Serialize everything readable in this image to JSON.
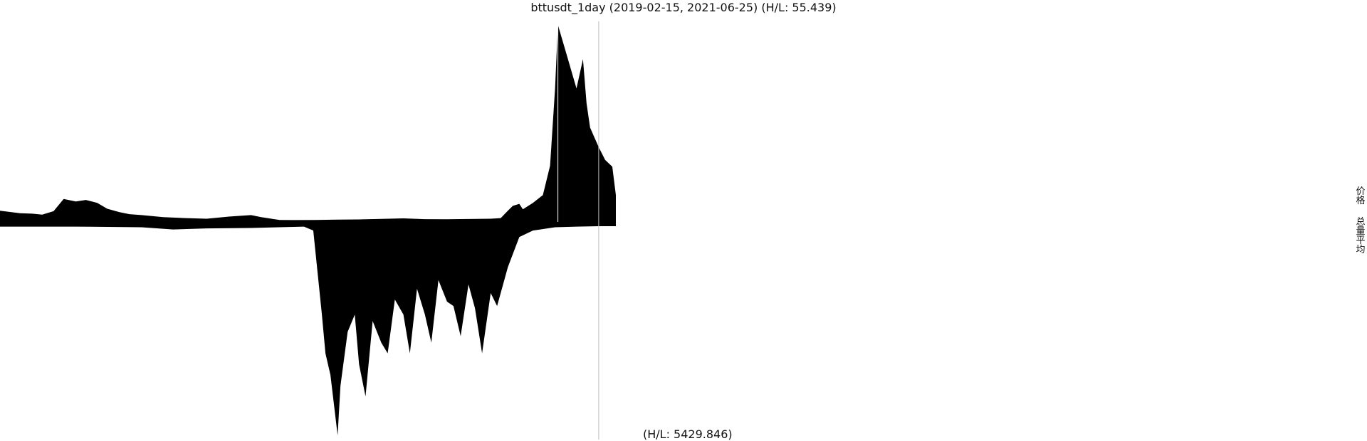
{
  "chart_data": {
    "type": "area",
    "title": "bttusdt_1day (2019-02-15, 2021-06-25) (H/L: 55.439)",
    "date_range": [
      "2019-02-15",
      "2021-06-25"
    ],
    "panels": [
      {
        "name": "top",
        "hl_ratio": 55.439,
        "series": {
          "style": "filled-area-above-baseline",
          "color": "#000000",
          "x": [
            "2019-02-15",
            "2019-03-15",
            "2019-04-01",
            "2019-04-15",
            "2019-05-01",
            "2019-05-15",
            "2019-06-01",
            "2019-06-15",
            "2019-07-01",
            "2019-07-15",
            "2019-08-01",
            "2019-08-15",
            "2019-09-01",
            "2019-10-01",
            "2019-11-01",
            "2019-12-01",
            "2020-01-01",
            "2020-02-01",
            "2020-02-15",
            "2020-03-12",
            "2020-04-01",
            "2020-05-01",
            "2020-06-01",
            "2020-07-01",
            "2020-08-01",
            "2020-09-01",
            "2020-10-01",
            "2020-11-01",
            "2020-12-01",
            "2021-01-01",
            "2021-01-15",
            "2021-01-25",
            "2021-02-01",
            "2021-02-10",
            "2021-02-15",
            "2021-03-01",
            "2021-03-15",
            "2021-03-25",
            "2021-04-01",
            "2021-04-05",
            "2021-04-15",
            "2021-04-25",
            "2021-05-01",
            "2021-05-10",
            "2021-05-15",
            "2021-05-20",
            "2021-06-01",
            "2021-06-10",
            "2021-06-20",
            "2021-06-25"
          ],
          "values": [
            1.0,
            0.75,
            0.7,
            0.6,
            0.95,
            2.2,
            1.95,
            2.1,
            1.8,
            1.2,
            0.85,
            0.65,
            0.55,
            0.35,
            0.25,
            0.18,
            0.4,
            0.55,
            0.35,
            0.05,
            0.04,
            0.06,
            0.09,
            0.11,
            0.16,
            0.22,
            0.14,
            0.13,
            0.15,
            0.18,
            0.25,
            1.0,
            1.5,
            1.7,
            1.15,
            1.8,
            2.6,
            5.6,
            13.5,
            20.0,
            17.5,
            15.0,
            13.5,
            16.5,
            12.0,
            9.5,
            7.5,
            6.2,
            5.5,
            2.6
          ]
        }
      },
      {
        "name": "bottom",
        "hl_ratio": 5429.846,
        "series": {
          "style": "filled-area-below-baseline",
          "color": "#000000",
          "x": [
            "2019-02-15",
            "2019-06-01",
            "2019-09-01",
            "2019-10-15",
            "2019-12-01",
            "2020-02-01",
            "2020-04-15",
            "2020-04-28",
            "2020-05-10",
            "2020-05-15",
            "2020-05-22",
            "2020-06-01",
            "2020-06-05",
            "2020-06-15",
            "2020-06-25",
            "2020-07-01",
            "2020-07-10",
            "2020-07-20",
            "2020-08-01",
            "2020-08-10",
            "2020-08-20",
            "2020-09-01",
            "2020-09-10",
            "2020-09-20",
            "2020-10-01",
            "2020-10-10",
            "2020-10-20",
            "2020-11-01",
            "2020-11-10",
            "2020-11-20",
            "2020-12-01",
            "2020-12-10",
            "2020-12-20",
            "2021-01-01",
            "2021-01-10",
            "2021-01-20",
            "2021-01-25",
            "2021-02-10",
            "2021-03-01",
            "2021-04-01",
            "2021-05-01",
            "2021-06-01",
            "2021-06-25"
          ],
          "values": [
            0.012,
            0.012,
            0.015,
            0.025,
            0.02,
            0.018,
            0.012,
            0.03,
            0.42,
            0.6,
            0.7,
            0.98,
            0.75,
            0.5,
            0.42,
            0.65,
            0.8,
            0.45,
            0.55,
            0.6,
            0.35,
            0.42,
            0.6,
            0.3,
            0.42,
            0.55,
            0.26,
            0.36,
            0.38,
            0.52,
            0.28,
            0.39,
            0.6,
            0.32,
            0.38,
            0.26,
            0.2,
            0.06,
            0.03,
            0.015,
            0.012,
            0.01,
            0.01
          ]
        }
      }
    ],
    "markers": [
      {
        "label": "top-panel-peak-marker",
        "x": "2021-04-05"
      },
      {
        "label": "last-day-marker",
        "x": "2021-06-01"
      }
    ],
    "legend": {
      "placement": "right",
      "items": [
        "价格",
        "总量平均"
      ]
    },
    "grid": false
  },
  "labels": {
    "bottom_hl": "(H/L: 5429.846)"
  }
}
